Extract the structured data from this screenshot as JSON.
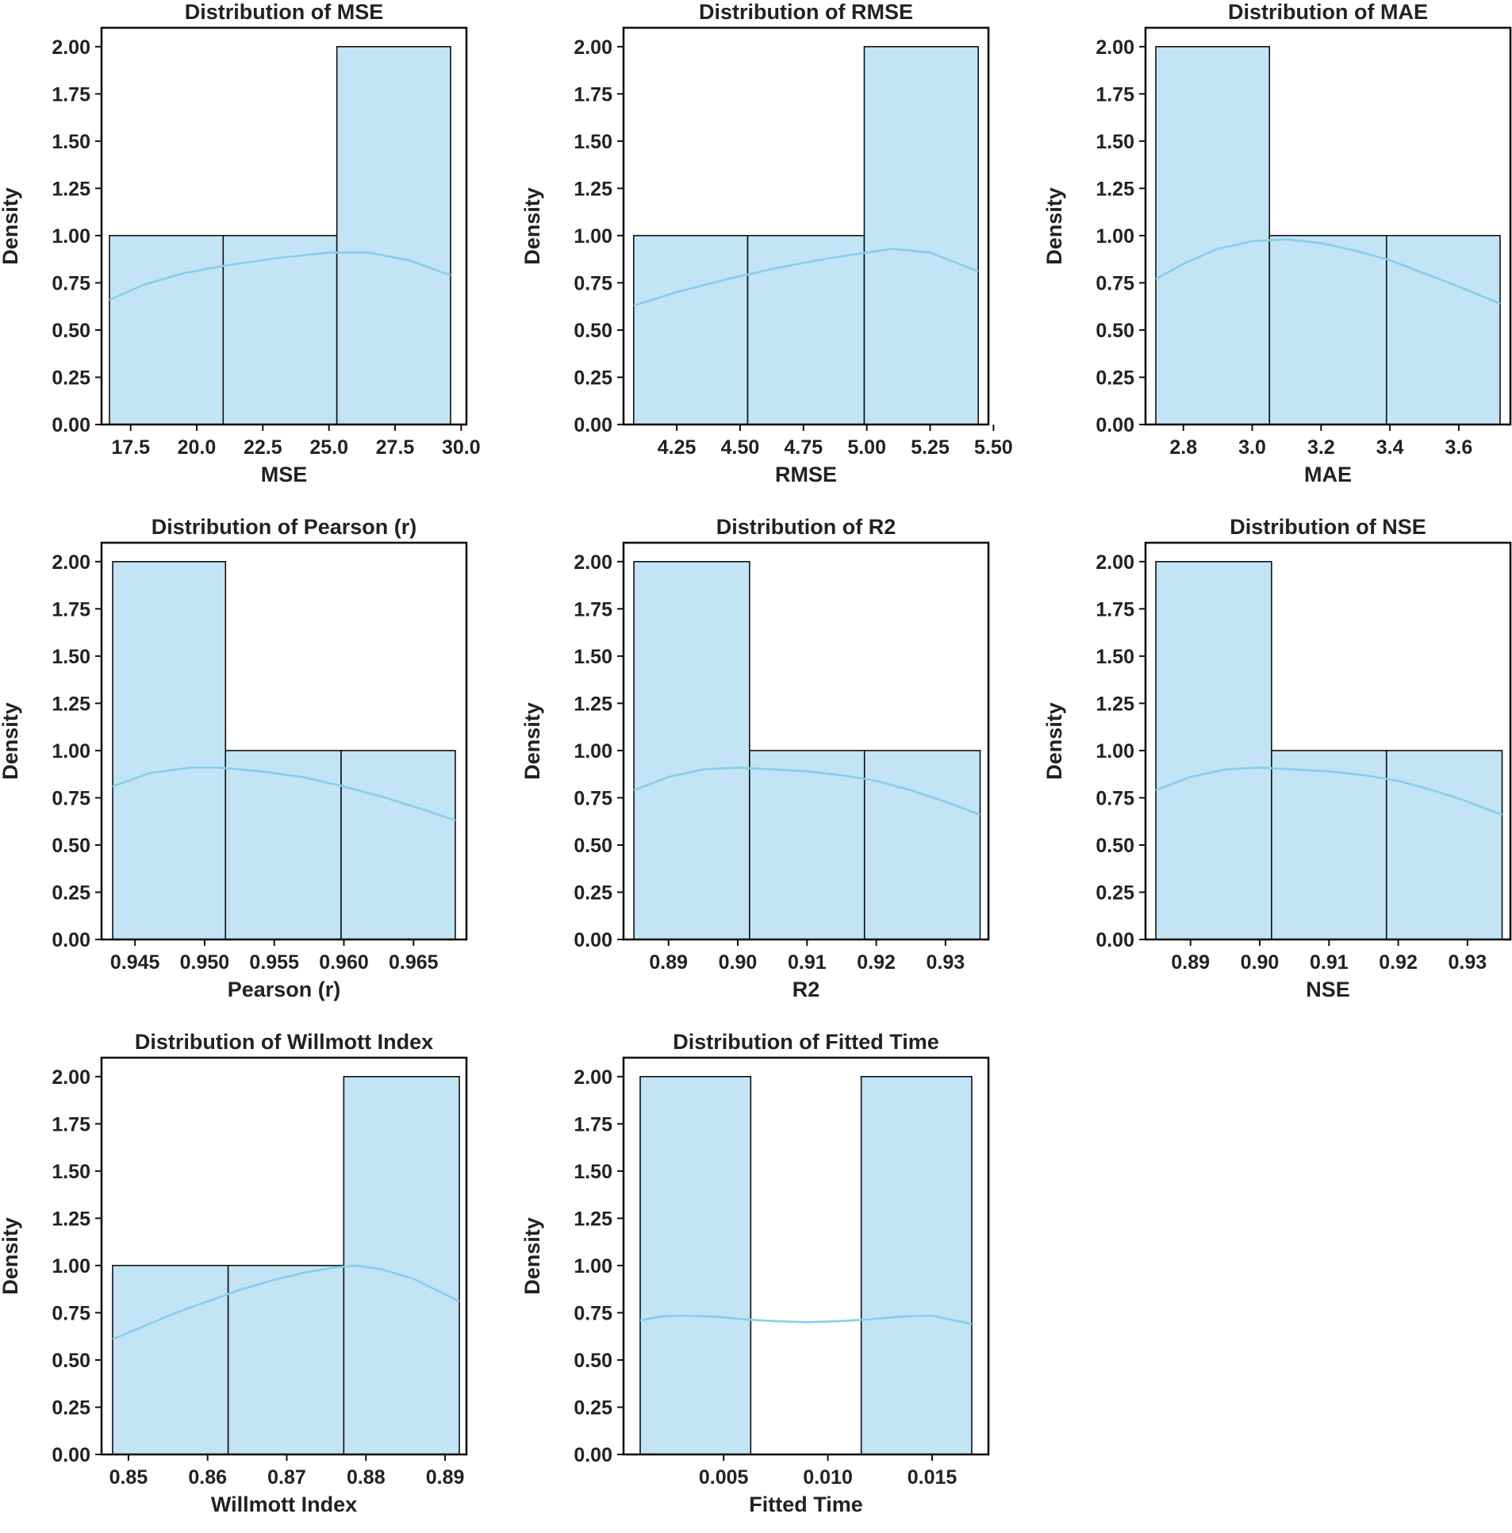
{
  "colors": {
    "bar_fill": "#c2e4f5",
    "bar_edge": "#111111",
    "kde_line": "#87ceeb",
    "axes": "#111111"
  },
  "chart_data": [
    {
      "type": "bar",
      "subtype": "histogram_with_kde",
      "title": "Distribution of MSE",
      "xlabel": "MSE",
      "ylabel": "Density",
      "xlim": [
        16.4,
        30.2
      ],
      "ylim": [
        0,
        2.1
      ],
      "xticks": [
        17.5,
        20.0,
        22.5,
        25.0,
        27.5,
        30.0
      ],
      "xtick_labels": [
        "17.5",
        "20.0",
        "22.5",
        "25.0",
        "27.5",
        "30.0"
      ],
      "yticks": [
        0,
        0.25,
        0.5,
        0.75,
        1.0,
        1.25,
        1.5,
        1.75,
        2.0
      ],
      "ytick_labels": [
        "0.00",
        "0.25",
        "0.50",
        "0.75",
        "1.00",
        "1.25",
        "1.50",
        "1.75",
        "2.00"
      ],
      "bins": [
        {
          "x0": 16.7,
          "x1": 21.0,
          "value": 1.0
        },
        {
          "x0": 21.0,
          "x1": 25.3,
          "value": 1.0
        },
        {
          "x0": 25.3,
          "x1": 29.6,
          "value": 2.0
        }
      ],
      "kde": {
        "x": [
          16.7,
          18.0,
          19.5,
          21.0,
          23.0,
          25.0,
          26.5,
          28.0,
          29.6
        ],
        "y": [
          0.66,
          0.74,
          0.8,
          0.84,
          0.88,
          0.91,
          0.91,
          0.87,
          0.79
        ]
      }
    },
    {
      "type": "bar",
      "subtype": "histogram_with_kde",
      "title": "Distribution of RMSE",
      "xlabel": "RMSE",
      "ylabel": "Density",
      "xlim": [
        4.04,
        5.48
      ],
      "ylim": [
        0,
        2.1
      ],
      "xticks": [
        4.25,
        4.5,
        4.75,
        5.0,
        5.25,
        5.5
      ],
      "xtick_labels": [
        "4.25",
        "4.50",
        "4.75",
        "5.00",
        "5.25",
        "5.50"
      ],
      "yticks": [
        0,
        0.25,
        0.5,
        0.75,
        1.0,
        1.25,
        1.5,
        1.75,
        2.0
      ],
      "ytick_labels": [
        "0.00",
        "0.25",
        "0.50",
        "0.75",
        "1.00",
        "1.25",
        "1.50",
        "1.75",
        "2.00"
      ],
      "bins": [
        {
          "x0": 4.08,
          "x1": 4.53,
          "value": 1.0
        },
        {
          "x0": 4.53,
          "x1": 4.99,
          "value": 1.0
        },
        {
          "x0": 4.99,
          "x1": 5.44,
          "value": 2.0
        }
      ],
      "kde": {
        "x": [
          4.08,
          4.25,
          4.45,
          4.65,
          4.85,
          5.0,
          5.1,
          5.25,
          5.44
        ],
        "y": [
          0.63,
          0.7,
          0.77,
          0.83,
          0.88,
          0.91,
          0.93,
          0.91,
          0.81
        ]
      }
    },
    {
      "type": "bar",
      "subtype": "histogram_with_kde",
      "title": "Distribution of MAE",
      "xlabel": "MAE",
      "ylabel": "Density",
      "xlim": [
        2.69,
        3.75
      ],
      "ylim": [
        0,
        2.1
      ],
      "xticks": [
        2.8,
        3.0,
        3.2,
        3.4,
        3.6
      ],
      "xtick_labels": [
        "2.8",
        "3.0",
        "3.2",
        "3.4",
        "3.6"
      ],
      "yticks": [
        0,
        0.25,
        0.5,
        0.75,
        1.0,
        1.25,
        1.5,
        1.75,
        2.0
      ],
      "ytick_labels": [
        "0.00",
        "0.25",
        "0.50",
        "0.75",
        "1.00",
        "1.25",
        "1.50",
        "1.75",
        "2.00"
      ],
      "bins": [
        {
          "x0": 2.72,
          "x1": 3.05,
          "value": 2.0
        },
        {
          "x0": 3.05,
          "x1": 3.39,
          "value": 1.0
        },
        {
          "x0": 3.39,
          "x1": 3.72,
          "value": 1.0
        }
      ],
      "kde": {
        "x": [
          2.72,
          2.8,
          2.9,
          3.0,
          3.1,
          3.2,
          3.3,
          3.4,
          3.5,
          3.6,
          3.72
        ],
        "y": [
          0.77,
          0.85,
          0.93,
          0.97,
          0.98,
          0.96,
          0.92,
          0.87,
          0.8,
          0.73,
          0.64
        ]
      }
    },
    {
      "type": "bar",
      "subtype": "histogram_with_kde",
      "title": "Distribution of Pearson (r)",
      "xlabel": "Pearson (r)",
      "ylabel": "Density",
      "xlim": [
        0.9426,
        0.9688
      ],
      "ylim": [
        0,
        2.1
      ],
      "xticks": [
        0.945,
        0.95,
        0.955,
        0.96,
        0.965
      ],
      "xtick_labels": [
        "0.945",
        "0.950",
        "0.955",
        "0.960",
        "0.965"
      ],
      "yticks": [
        0,
        0.25,
        0.5,
        0.75,
        1.0,
        1.25,
        1.5,
        1.75,
        2.0
      ],
      "ytick_labels": [
        "0.00",
        "0.25",
        "0.50",
        "0.75",
        "1.00",
        "1.25",
        "1.50",
        "1.75",
        "2.00"
      ],
      "bins": [
        {
          "x0": 0.9434,
          "x1": 0.9515,
          "value": 2.0
        },
        {
          "x0": 0.9515,
          "x1": 0.9598,
          "value": 1.0
        },
        {
          "x0": 0.9598,
          "x1": 0.968,
          "value": 1.0
        }
      ],
      "kde": {
        "x": [
          0.9434,
          0.946,
          0.949,
          0.951,
          0.954,
          0.957,
          0.96,
          0.963,
          0.966,
          0.968
        ],
        "y": [
          0.81,
          0.88,
          0.91,
          0.91,
          0.89,
          0.86,
          0.81,
          0.75,
          0.68,
          0.63
        ]
      }
    },
    {
      "type": "bar",
      "subtype": "histogram_with_kde",
      "title": "Distribution of R2",
      "xlabel": "R2",
      "ylabel": "Density",
      "xlim": [
        0.8835,
        0.9362
      ],
      "ylim": [
        0,
        2.1
      ],
      "xticks": [
        0.89,
        0.9,
        0.91,
        0.92,
        0.93
      ],
      "xtick_labels": [
        "0.89",
        "0.90",
        "0.91",
        "0.92",
        "0.93"
      ],
      "yticks": [
        0,
        0.25,
        0.5,
        0.75,
        1.0,
        1.25,
        1.5,
        1.75,
        2.0
      ],
      "ytick_labels": [
        "0.00",
        "0.25",
        "0.50",
        "0.75",
        "1.00",
        "1.25",
        "1.50",
        "1.75",
        "2.00"
      ],
      "bins": [
        {
          "x0": 0.885,
          "x1": 0.9017,
          "value": 2.0
        },
        {
          "x0": 0.9017,
          "x1": 0.9183,
          "value": 1.0
        },
        {
          "x0": 0.9183,
          "x1": 0.935,
          "value": 1.0
        }
      ],
      "kde": {
        "x": [
          0.885,
          0.89,
          0.895,
          0.9,
          0.905,
          0.91,
          0.915,
          0.92,
          0.925,
          0.93,
          0.935
        ],
        "y": [
          0.79,
          0.86,
          0.9,
          0.91,
          0.9,
          0.89,
          0.87,
          0.84,
          0.79,
          0.73,
          0.66
        ]
      }
    },
    {
      "type": "bar",
      "subtype": "histogram_with_kde",
      "title": "Distribution of NSE",
      "xlabel": "NSE",
      "ylabel": "Density",
      "xlim": [
        0.8835,
        0.9362
      ],
      "ylim": [
        0,
        2.1
      ],
      "xticks": [
        0.89,
        0.9,
        0.91,
        0.92,
        0.93
      ],
      "xtick_labels": [
        "0.89",
        "0.90",
        "0.91",
        "0.92",
        "0.93"
      ],
      "yticks": [
        0,
        0.25,
        0.5,
        0.75,
        1.0,
        1.25,
        1.5,
        1.75,
        2.0
      ],
      "ytick_labels": [
        "0.00",
        "0.25",
        "0.50",
        "0.75",
        "1.00",
        "1.25",
        "1.50",
        "1.75",
        "2.00"
      ],
      "bins": [
        {
          "x0": 0.885,
          "x1": 0.9017,
          "value": 2.0
        },
        {
          "x0": 0.9017,
          "x1": 0.9183,
          "value": 1.0
        },
        {
          "x0": 0.9183,
          "x1": 0.935,
          "value": 1.0
        }
      ],
      "kde": {
        "x": [
          0.885,
          0.89,
          0.895,
          0.9,
          0.905,
          0.91,
          0.915,
          0.92,
          0.925,
          0.93,
          0.935
        ],
        "y": [
          0.79,
          0.86,
          0.9,
          0.91,
          0.9,
          0.89,
          0.87,
          0.84,
          0.79,
          0.73,
          0.66
        ]
      }
    },
    {
      "type": "bar",
      "subtype": "histogram_with_kde",
      "title": "Distribution of Willmott Index",
      "xlabel": "Willmott Index",
      "ylabel": "Density",
      "xlim": [
        0.8466,
        0.8927
      ],
      "ylim": [
        0,
        2.1
      ],
      "xticks": [
        0.85,
        0.86,
        0.87,
        0.88,
        0.89
      ],
      "xtick_labels": [
        "0.85",
        "0.86",
        "0.87",
        "0.88",
        "0.89"
      ],
      "yticks": [
        0,
        0.25,
        0.5,
        0.75,
        1.0,
        1.25,
        1.5,
        1.75,
        2.0
      ],
      "ytick_labels": [
        "0.00",
        "0.25",
        "0.50",
        "0.75",
        "1.00",
        "1.25",
        "1.50",
        "1.75",
        "2.00"
      ],
      "bins": [
        {
          "x0": 0.848,
          "x1": 0.8626,
          "value": 1.0
        },
        {
          "x0": 0.8626,
          "x1": 0.8772,
          "value": 1.0
        },
        {
          "x0": 0.8772,
          "x1": 0.8918,
          "value": 2.0
        }
      ],
      "kde": {
        "x": [
          0.848,
          0.852,
          0.856,
          0.86,
          0.864,
          0.868,
          0.872,
          0.876,
          0.879,
          0.882,
          0.886,
          0.8918
        ],
        "y": [
          0.61,
          0.68,
          0.75,
          0.81,
          0.87,
          0.92,
          0.96,
          0.99,
          1.0,
          0.98,
          0.93,
          0.81
        ]
      }
    },
    {
      "type": "bar",
      "subtype": "histogram_with_kde",
      "title": "Distribution of Fitted Time",
      "xlabel": "Fitted Time",
      "ylabel": "Density",
      "xlim": [
        0.0002,
        0.0177
      ],
      "ylim": [
        0,
        2.1
      ],
      "xticks": [
        0.005,
        0.01,
        0.015
      ],
      "xtick_labels": [
        "0.005",
        "0.010",
        "0.015"
      ],
      "yticks": [
        0,
        0.25,
        0.5,
        0.75,
        1.0,
        1.25,
        1.5,
        1.75,
        2.0
      ],
      "ytick_labels": [
        "0.00",
        "0.25",
        "0.50",
        "0.75",
        "1.00",
        "1.25",
        "1.50",
        "1.75",
        "2.00"
      ],
      "bins": [
        {
          "x0": 0.001,
          "x1": 0.0063,
          "value": 2.0
        },
        {
          "x0": 0.0063,
          "x1": 0.0116,
          "value": 0.0
        },
        {
          "x0": 0.0116,
          "x1": 0.0169,
          "value": 2.0
        }
      ],
      "kde": {
        "x": [
          0.001,
          0.002,
          0.003,
          0.0045,
          0.006,
          0.0075,
          0.009,
          0.0105,
          0.012,
          0.0135,
          0.015,
          0.0169
        ],
        "y": [
          0.71,
          0.73,
          0.735,
          0.73,
          0.715,
          0.705,
          0.7,
          0.705,
          0.715,
          0.73,
          0.735,
          0.69
        ]
      }
    }
  ]
}
